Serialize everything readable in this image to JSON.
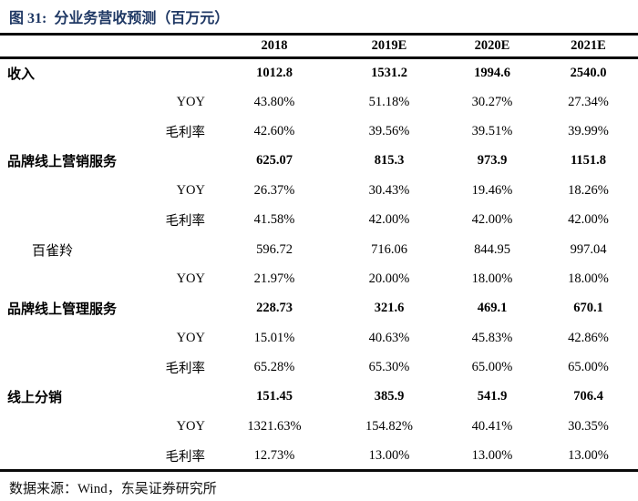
{
  "figure": {
    "title": "图 31:  分业务营收预测（百万元）"
  },
  "table": {
    "columns": [
      "",
      "2018",
      "2019E",
      "2020E",
      "2021E"
    ],
    "rows": [
      {
        "label": "收入",
        "type": "section",
        "values": [
          "1012.8",
          "1531.2",
          "1994.6",
          "2540.0"
        ]
      },
      {
        "label": "YOY",
        "type": "sub",
        "values": [
          "43.80%",
          "51.18%",
          "30.27%",
          "27.34%"
        ]
      },
      {
        "label": "毛利率",
        "type": "sub",
        "values": [
          "42.60%",
          "39.56%",
          "39.51%",
          "39.99%"
        ]
      },
      {
        "label": "品牌线上营销服务",
        "type": "section",
        "values": [
          "625.07",
          "815.3",
          "973.9",
          "1151.8"
        ]
      },
      {
        "label": "YOY",
        "type": "sub",
        "values": [
          "26.37%",
          "30.43%",
          "19.46%",
          "18.26%"
        ]
      },
      {
        "label": "毛利率",
        "type": "sub",
        "values": [
          "41.58%",
          "42.00%",
          "42.00%",
          "42.00%"
        ]
      },
      {
        "label": "百雀羚",
        "type": "item",
        "values": [
          "596.72",
          "716.06",
          "844.95",
          "997.04"
        ]
      },
      {
        "label": "YOY",
        "type": "sub",
        "values": [
          "21.97%",
          "20.00%",
          "18.00%",
          "18.00%"
        ]
      },
      {
        "label": "品牌线上管理服务",
        "type": "section",
        "values": [
          "228.73",
          "321.6",
          "469.1",
          "670.1"
        ]
      },
      {
        "label": "YOY",
        "type": "sub",
        "values": [
          "15.01%",
          "40.63%",
          "45.83%",
          "42.86%"
        ]
      },
      {
        "label": "毛利率",
        "type": "sub",
        "values": [
          "65.28%",
          "65.30%",
          "65.00%",
          "65.00%"
        ]
      },
      {
        "label": "线上分销",
        "type": "section",
        "values": [
          "151.45",
          "385.9",
          "541.9",
          "706.4"
        ]
      },
      {
        "label": "YOY",
        "type": "sub",
        "values": [
          "1321.63%",
          "154.82%",
          "40.41%",
          "30.35%"
        ]
      },
      {
        "label": "毛利率",
        "type": "sub",
        "values": [
          "12.73%",
          "13.00%",
          "13.00%",
          "13.00%"
        ]
      }
    ]
  },
  "source": "数据来源：Wind，东吴证券研究所",
  "colors": {
    "title_navy": "#1F3864",
    "rule_black": "#0a0a0a",
    "text_black": "#000000",
    "background": "#ffffff"
  }
}
